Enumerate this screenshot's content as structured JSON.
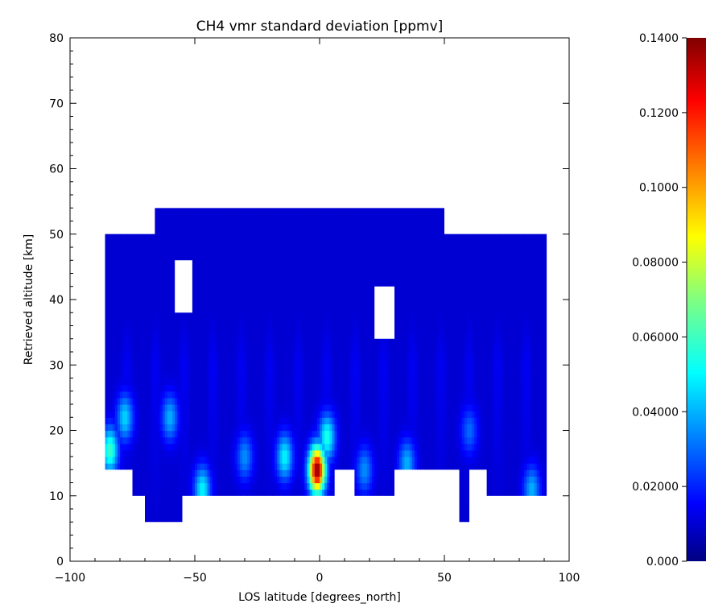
{
  "chart_data": {
    "type": "heatmap",
    "title": "CH4 vmr standard deviation [ppmv]",
    "xlabel": "LOS latitude [degrees_north]",
    "ylabel": "Retrieved altitude [km]",
    "xlim": [
      -100,
      100
    ],
    "ylim": [
      0,
      80
    ],
    "x_ticks": [
      "-100",
      "-50",
      "0",
      "50",
      "100"
    ],
    "y_ticks": [
      "0",
      "10",
      "20",
      "30",
      "40",
      "50",
      "60",
      "70",
      "80"
    ],
    "colorbar": {
      "range": [
        0.0,
        0.14
      ],
      "ticks": [
        "0.000",
        "0.02000",
        "0.04000",
        "0.06000",
        "0.08000",
        "0.1000",
        "0.1200",
        "0.1400"
      ],
      "colormap": "rainbow (dark blue to dark red)"
    },
    "grid": false,
    "data_region": {
      "columns": [
        {
          "lat": [
            -86,
            -75
          ],
          "alt_range": [
            14,
            50
          ]
        },
        {
          "lat": [
            -75,
            -73
          ],
          "alt_range": [
            10,
            50
          ]
        },
        {
          "lat": [
            -73,
            -70
          ],
          "alt_range": [
            10,
            50
          ]
        },
        {
          "lat": [
            -70,
            -66
          ],
          "alt_range": [
            6,
            50
          ]
        },
        {
          "lat": [
            -66,
            -55
          ],
          "alt_range": [
            6,
            54
          ]
        },
        {
          "lat": [
            -55,
            -50
          ],
          "alt_range": [
            10,
            54
          ]
        },
        {
          "lat": [
            -50,
            6
          ],
          "alt_range": [
            10,
            54
          ]
        },
        {
          "lat": [
            6,
            14
          ],
          "alt_range": [
            14,
            54
          ]
        },
        {
          "lat": [
            14,
            30
          ],
          "alt_range": [
            10,
            54
          ]
        },
        {
          "lat": [
            30,
            50
          ],
          "alt_range": [
            14,
            54
          ]
        },
        {
          "lat": [
            50,
            56
          ],
          "alt_range": [
            14,
            50
          ]
        },
        {
          "lat": [
            56,
            60
          ],
          "alt_range": [
            6,
            50
          ]
        },
        {
          "lat": [
            60,
            67
          ],
          "alt_range": [
            14,
            50
          ]
        },
        {
          "lat": [
            67,
            91
          ],
          "alt_range": [
            10,
            50
          ]
        }
      ],
      "gaps": [
        {
          "lat": [
            -58,
            -51
          ],
          "alt_range": [
            38,
            46
          ]
        },
        {
          "lat": [
            22,
            30
          ],
          "alt_range": [
            34,
            42
          ]
        }
      ],
      "hotspots": [
        {
          "lat": -1,
          "alt": 14,
          "value": 0.14
        },
        {
          "lat": -84,
          "alt": 17,
          "value": 0.06
        },
        {
          "lat": -78,
          "alt": 22,
          "value": 0.045
        },
        {
          "lat": -47,
          "alt": 11,
          "value": 0.05
        },
        {
          "lat": 3,
          "alt": 19,
          "value": 0.055
        },
        {
          "lat": -14,
          "alt": 16,
          "value": 0.05
        },
        {
          "lat": -60,
          "alt": 22,
          "value": 0.04
        },
        {
          "lat": -30,
          "alt": 16,
          "value": 0.035
        },
        {
          "lat": 18,
          "alt": 14,
          "value": 0.035
        },
        {
          "lat": 35,
          "alt": 15,
          "value": 0.04
        },
        {
          "lat": 85,
          "alt": 11,
          "value": 0.04
        },
        {
          "lat": 60,
          "alt": 20,
          "value": 0.03
        }
      ],
      "background": 0.01,
      "top_value": 0.003
    }
  }
}
